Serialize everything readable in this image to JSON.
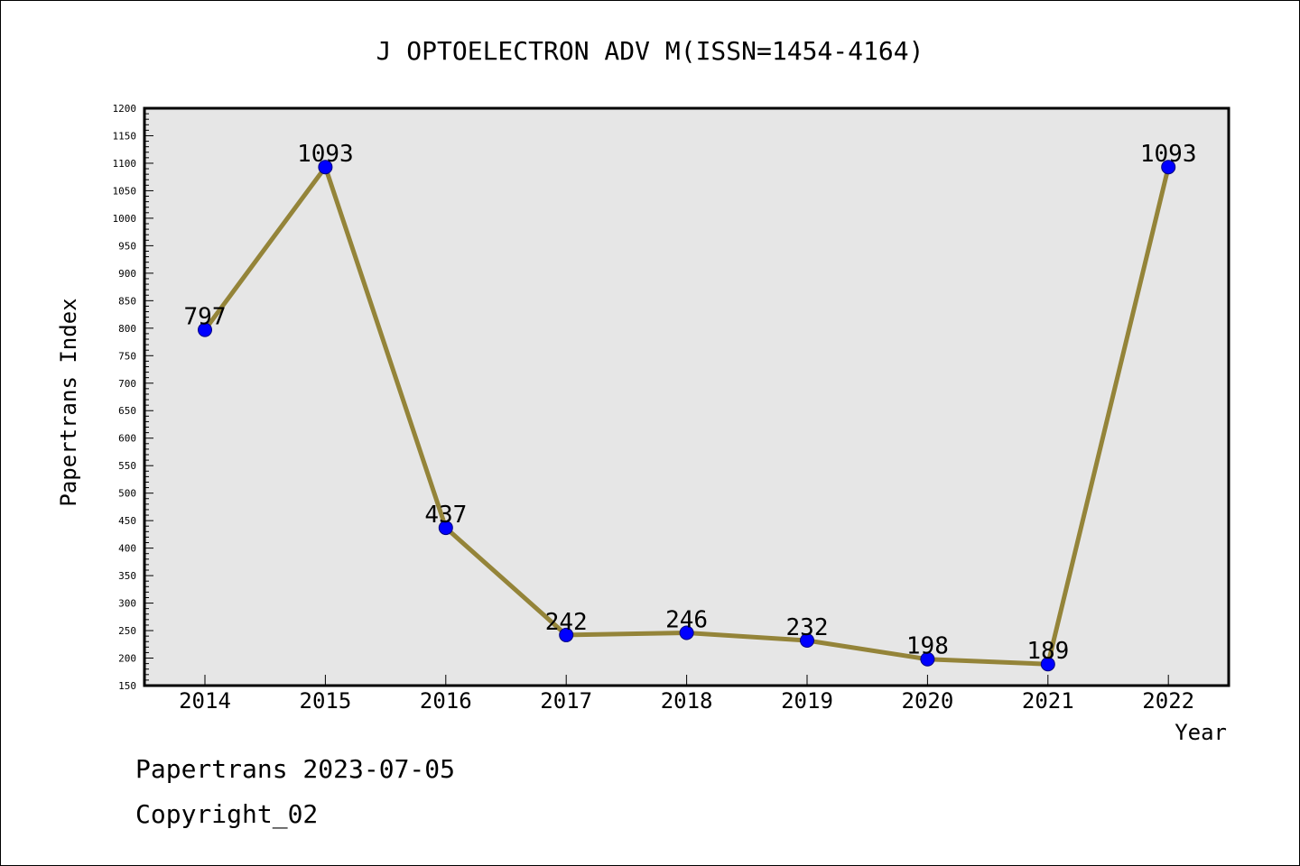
{
  "chart_data": {
    "type": "line",
    "title": "J OPTOELECTRON ADV M(ISSN=1454-4164)",
    "xlabel": "Year",
    "ylabel": "Papertrans Index",
    "categories": [
      "2014",
      "2015",
      "2016",
      "2017",
      "2018",
      "2019",
      "2020",
      "2021",
      "2022"
    ],
    "series": [
      {
        "values": [
          797,
          1093,
          437,
          242,
          246,
          232,
          198,
          189,
          1093
        ]
      }
    ],
    "ylim": [
      150,
      1200
    ],
    "y_major_ticks": [
      150,
      200,
      250,
      300,
      350,
      400,
      450,
      500,
      550,
      600,
      650,
      700,
      750,
      800,
      850,
      900,
      950,
      1000,
      1050,
      1100,
      1150,
      1200
    ],
    "data_labels": [
      "797",
      "1093",
      "437",
      "242",
      "246",
      "232",
      "198",
      "189",
      "1093"
    ],
    "grid": false,
    "colors": {
      "plot_background": "#e6e6e6",
      "line": "#948439",
      "marker_fill": "#0000ff",
      "marker_stroke": "#000080"
    }
  },
  "footer": {
    "line1": "Papertrans 2023-07-05",
    "line2": "Copyright_02"
  }
}
